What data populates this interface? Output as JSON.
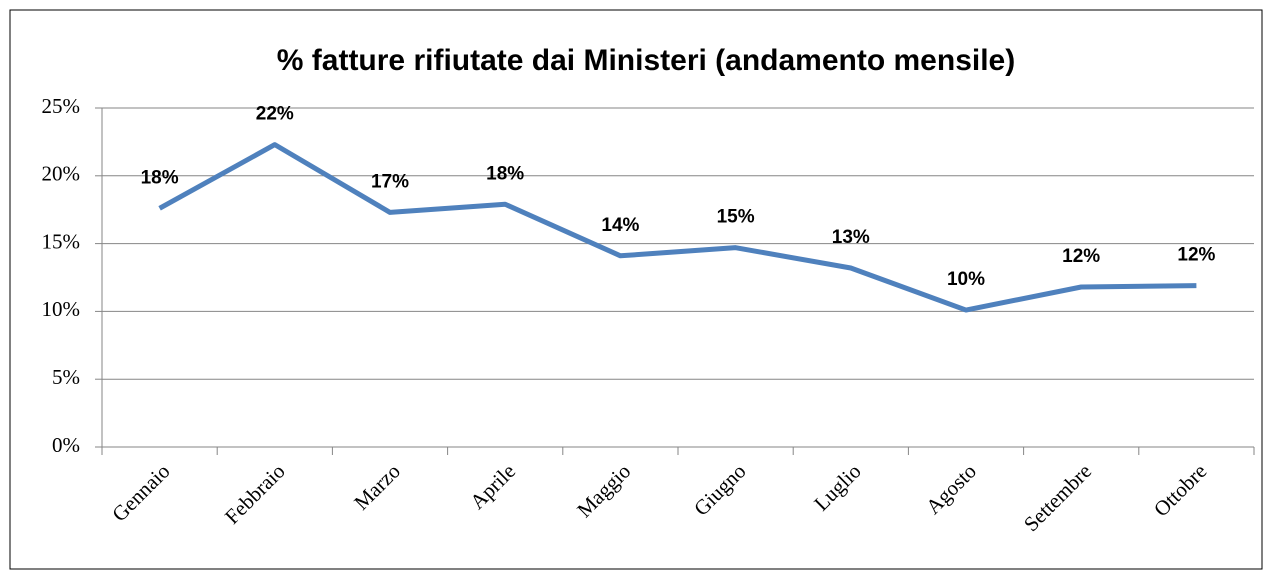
{
  "chart_data": {
    "type": "line",
    "title": "% fatture rifiutate dai Ministeri (andamento mensile)",
    "categories": [
      "Gennaio",
      "Febbraio",
      "Marzo",
      "Aprile",
      "Maggio",
      "Giugno",
      "Luglio",
      "Agosto",
      "Settembre",
      "Ottobre"
    ],
    "series": [
      {
        "name": "% fatture rifiutate",
        "color": "#4f81bd",
        "values": [
          17.6,
          22.3,
          17.3,
          17.9,
          14.1,
          14.7,
          13.2,
          10.1,
          11.8,
          11.9
        ],
        "value_labels": [
          "18%",
          "22%",
          "17%",
          "18%",
          "14%",
          "15%",
          "13%",
          "10%",
          "12%",
          "12%"
        ]
      }
    ],
    "ylim": [
      0,
      25
    ],
    "yticks": [
      {
        "value": 0,
        "label": "0%"
      },
      {
        "value": 5,
        "label": "5%"
      },
      {
        "value": 10,
        "label": "10%"
      },
      {
        "value": 15,
        "label": "15%"
      },
      {
        "value": 20,
        "label": "20%"
      },
      {
        "value": 25,
        "label": "25%"
      }
    ],
    "grid": true
  }
}
